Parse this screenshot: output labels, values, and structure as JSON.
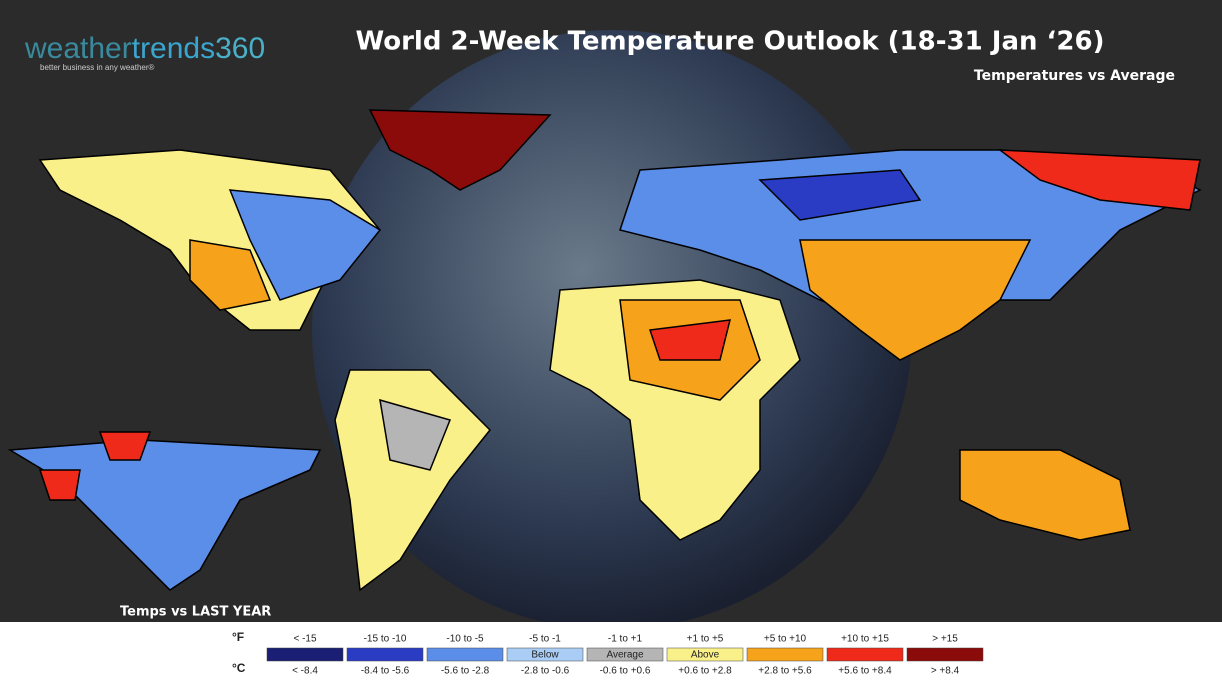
{
  "logo": {
    "parts": [
      "weather",
      "trends",
      "360"
    ],
    "tagline": "better business in any weather®"
  },
  "title": "World 2-Week Temperature Outlook (18-31 Jan ‘26)",
  "subtitle": "Temperatures vs Average",
  "inset_label": "Temps vs LAST YEAR",
  "legend": {
    "fahrenheit_unit": "°F",
    "celsius_unit": "°C",
    "bins": [
      {
        "f": "< -15",
        "c": "< -8.4",
        "color": "#1b1f73"
      },
      {
        "f": "-15 to -10",
        "c": "-8.4 to -5.6",
        "color": "#2b3cc4"
      },
      {
        "f": "-10 to -5",
        "c": "-5.6 to -2.8",
        "color": "#5b8ee8"
      },
      {
        "f": "-5 to -1",
        "c": "-2.8 to -0.6",
        "color": "#a9cdf5",
        "inner": "Below"
      },
      {
        "f": "-1 to +1",
        "c": "-0.6 to +0.6",
        "color": "#b5b5b5",
        "inner": "Average"
      },
      {
        "f": "+1 to +5",
        "c": "+0.6 to +2.8",
        "color": "#faf08a",
        "inner": "Above"
      },
      {
        "f": "+5 to +10",
        "c": "+2.8 to +5.6",
        "color": "#f7a21b"
      },
      {
        "f": "+10 to +15",
        "c": "+5.6 to +8.4",
        "color": "#f02a1a"
      },
      {
        "f": "> +15",
        "c": "> +8.4",
        "color": "#8b0a0a"
      }
    ]
  }
}
